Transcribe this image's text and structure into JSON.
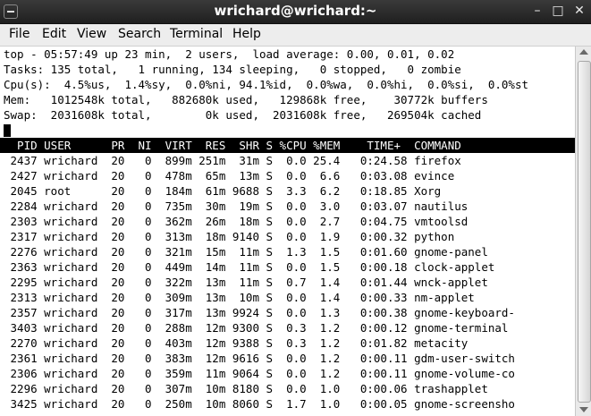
{
  "window": {
    "title": "wrichard@wrichard:~"
  },
  "menu": [
    "File",
    "Edit",
    "View",
    "Search",
    "Terminal",
    "Help"
  ],
  "top_summary": [
    "top - 05:57:49 up 23 min,  2 users,  load average: 0.00, 0.01, 0.02",
    "Tasks: 135 total,   1 running, 134 sleeping,   0 stopped,   0 zombie",
    "Cpu(s):  4.5%us,  1.4%sy,  0.0%ni, 94.1%id,  0.0%wa,  0.0%hi,  0.0%si,  0.0%st",
    "Mem:   1012548k total,   882680k used,   129868k free,    30772k buffers",
    "Swap:  2031608k total,        0k used,  2031608k free,   269504k cached"
  ],
  "table_header": "  PID USER      PR  NI  VIRT  RES  SHR S %CPU %MEM    TIME+  COMMAND",
  "processes": [
    " 2437 wrichard  20   0  899m 251m  31m S  0.0 25.4   0:24.58 firefox",
    " 2427 wrichard  20   0  478m  65m  13m S  0.0  6.6   0:03.08 evince",
    " 2045 root      20   0  184m  61m 9688 S  3.3  6.2   0:18.85 Xorg",
    " 2284 wrichard  20   0  735m  30m  19m S  0.0  3.0   0:03.07 nautilus",
    " 2303 wrichard  20   0  362m  26m  18m S  0.0  2.7   0:04.75 vmtoolsd",
    " 2317 wrichard  20   0  313m  18m 9140 S  0.0  1.9   0:00.32 python",
    " 2276 wrichard  20   0  321m  15m  11m S  1.3  1.5   0:01.60 gnome-panel",
    " 2363 wrichard  20   0  449m  14m  11m S  0.0  1.5   0:00.18 clock-applet",
    " 2295 wrichard  20   0  322m  13m  11m S  0.7  1.4   0:01.44 wnck-applet",
    " 2313 wrichard  20   0  309m  13m  10m S  0.0  1.4   0:00.33 nm-applet",
    " 2357 wrichard  20   0  317m  13m 9924 S  0.0  1.3   0:00.38 gnome-keyboard-",
    " 3403 wrichard  20   0  288m  12m 9300 S  0.3  1.2   0:00.12 gnome-terminal",
    " 2270 wrichard  20   0  403m  12m 9388 S  0.3  1.2   0:01.82 metacity",
    " 2361 wrichard  20   0  383m  12m 9616 S  0.0  1.2   0:00.11 gdm-user-switch",
    " 2306 wrichard  20   0  359m  11m 9064 S  0.0  1.2   0:00.11 gnome-volume-co",
    " 2296 wrichard  20   0  307m  10m 8180 S  0.0  1.0   0:00.06 trashapplet",
    " 3425 wrichard  20   0  250m  10m 8060 S  1.7  1.0   0:00.05 gnome-screensho"
  ]
}
